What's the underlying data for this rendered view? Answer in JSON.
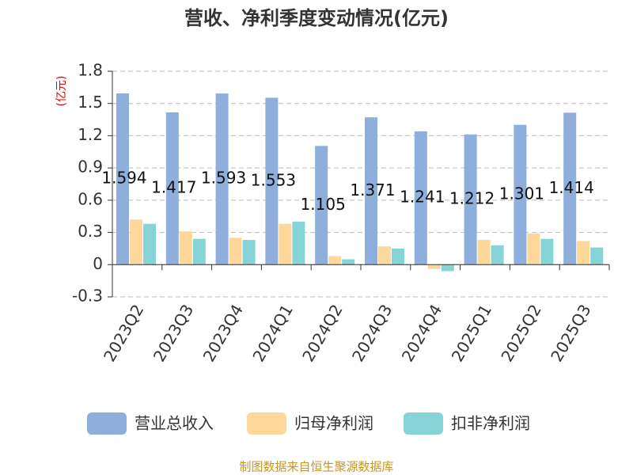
{
  "chart_data": {
    "type": "bar",
    "title": "营收、净利季度变动情况(亿元)",
    "y_unit": "(亿元)",
    "source": "制图数据来自恒生聚源数据库",
    "categories": [
      "2023Q2",
      "2023Q3",
      "2023Q4",
      "2024Q1",
      "2024Q2",
      "2024Q3",
      "2024Q4",
      "2025Q1",
      "2025Q2",
      "2025Q3"
    ],
    "series": [
      {
        "name": "营业总收入",
        "color": "#8eaedb",
        "data_labels": true,
        "values": [
          1.594,
          1.417,
          1.593,
          1.553,
          1.105,
          1.371,
          1.241,
          1.212,
          1.301,
          1.414
        ]
      },
      {
        "name": "归母净利润",
        "color": "#fdd89a",
        "values": [
          0.42,
          0.31,
          0.25,
          0.38,
          0.08,
          0.17,
          -0.04,
          0.23,
          0.29,
          0.22
        ]
      },
      {
        "name": "扣非净利润",
        "color": "#86d4d7",
        "values": [
          0.38,
          0.24,
          0.23,
          0.4,
          0.05,
          0.15,
          -0.06,
          0.18,
          0.24,
          0.16
        ]
      }
    ],
    "ylim": [
      -0.3,
      1.8
    ],
    "yticks": [
      -0.3,
      0,
      0.3,
      0.6,
      0.9,
      1.2,
      1.5,
      1.8
    ],
    "grid": true
  }
}
